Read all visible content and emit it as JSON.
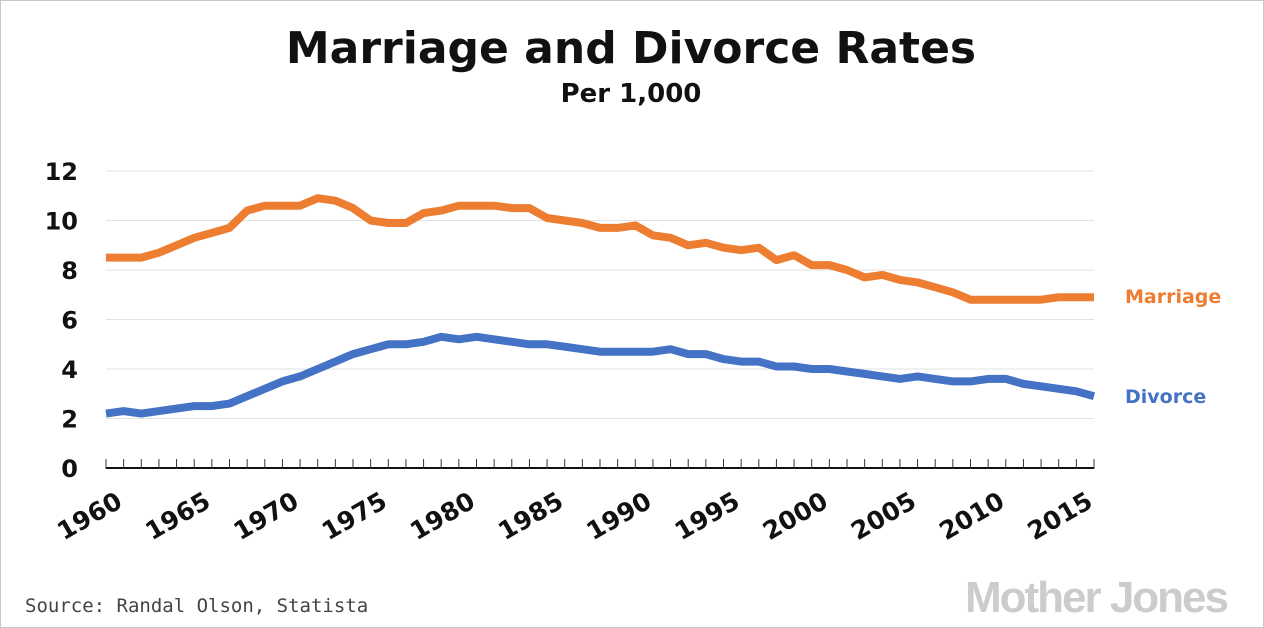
{
  "chart_data": {
    "type": "line",
    "title": "Marriage and Divorce Rates",
    "subtitle": "Per 1,000",
    "xlabel": "",
    "ylabel": "",
    "xlim": [
      1960,
      2016
    ],
    "ylim": [
      0,
      12
    ],
    "y_ticks": [
      "0",
      "2",
      "4",
      "6",
      "8",
      "10",
      "12"
    ],
    "x_ticks": [
      "1960",
      "1965",
      "1970",
      "1975",
      "1980",
      "1985",
      "1990",
      "1995",
      "2000",
      "2005",
      "2010",
      "2015"
    ],
    "grid": "horizontal",
    "x": [
      1960,
      1961,
      1962,
      1963,
      1964,
      1965,
      1966,
      1967,
      1968,
      1969,
      1970,
      1971,
      1972,
      1973,
      1974,
      1975,
      1976,
      1977,
      1978,
      1979,
      1980,
      1981,
      1982,
      1983,
      1984,
      1985,
      1986,
      1987,
      1988,
      1989,
      1990,
      1991,
      1992,
      1993,
      1994,
      1995,
      1996,
      1997,
      1998,
      1999,
      2000,
      2001,
      2002,
      2003,
      2004,
      2005,
      2006,
      2007,
      2008,
      2009,
      2010,
      2011,
      2012,
      2013,
      2014,
      2015,
      2016
    ],
    "series": [
      {
        "name": "Marriage",
        "color": "#ed7d31",
        "values": [
          8.5,
          8.5,
          8.5,
          8.7,
          9.0,
          9.3,
          9.5,
          9.7,
          10.4,
          10.6,
          10.6,
          10.6,
          10.9,
          10.8,
          10.5,
          10.0,
          9.9,
          9.9,
          10.3,
          10.4,
          10.6,
          10.6,
          10.6,
          10.5,
          10.5,
          10.1,
          10.0,
          9.9,
          9.7,
          9.7,
          9.8,
          9.4,
          9.3,
          9.0,
          9.1,
          8.9,
          8.8,
          8.9,
          8.4,
          8.6,
          8.2,
          8.2,
          8.0,
          7.7,
          7.8,
          7.6,
          7.5,
          7.3,
          7.1,
          6.8,
          6.8,
          6.8,
          6.8,
          6.8,
          6.9,
          6.9,
          6.9
        ]
      },
      {
        "name": "Divorce",
        "color": "#4472c4",
        "values": [
          2.2,
          2.3,
          2.2,
          2.3,
          2.4,
          2.5,
          2.5,
          2.6,
          2.9,
          3.2,
          3.5,
          3.7,
          4.0,
          4.3,
          4.6,
          4.8,
          5.0,
          5.0,
          5.1,
          5.3,
          5.2,
          5.3,
          5.2,
          5.1,
          5.0,
          5.0,
          4.9,
          4.8,
          4.7,
          4.7,
          4.7,
          4.7,
          4.8,
          4.6,
          4.6,
          4.4,
          4.3,
          4.3,
          4.1,
          4.1,
          4.0,
          4.0,
          3.9,
          3.8,
          3.7,
          3.6,
          3.7,
          3.6,
          3.5,
          3.5,
          3.6,
          3.6,
          3.4,
          3.3,
          3.2,
          3.1,
          2.9
        ]
      }
    ],
    "annotations": [
      "Marriage",
      "Divorce"
    ]
  },
  "footer": {
    "source": "Source: Randal Olson, Statista",
    "brand": "Mother Jones"
  }
}
